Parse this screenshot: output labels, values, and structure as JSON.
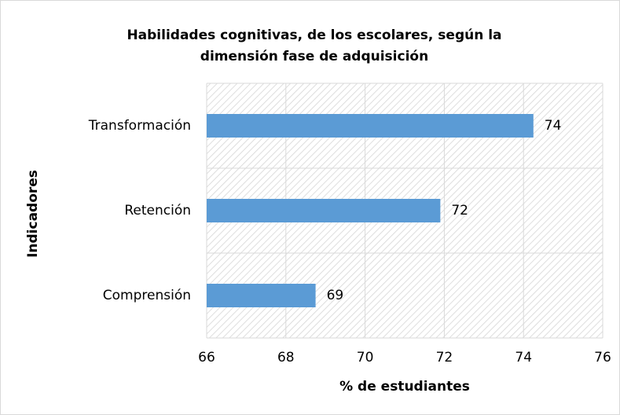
{
  "chart_data": {
    "type": "barh",
    "title": [
      "Habilidades cognitivas, de los escolares, según la",
      "dimensión fase de adquisición"
    ],
    "categories": [
      "Transformación",
      "Retención",
      "Comprensión"
    ],
    "values": [
      74.25,
      71.9,
      68.75
    ],
    "value_labels": [
      "74",
      "72",
      "69"
    ],
    "color": "#5b9bd5",
    "xlabel": "% de estudiantes",
    "ylabel": "Indicadores",
    "xlim": [
      66,
      76
    ],
    "xticks": [
      66,
      68,
      70,
      72,
      74,
      76
    ],
    "grid": true
  }
}
